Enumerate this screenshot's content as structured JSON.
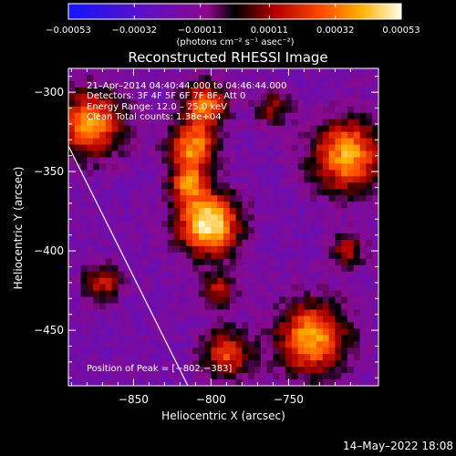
{
  "chart_data": {
    "type": "heatmap",
    "title": "Reconstructed RHESSI Image",
    "xlabel": "Heliocentric X (arcsec)",
    "ylabel": "Heliocentric Y (arcsec)",
    "xlim": [
      -892,
      -692
    ],
    "ylim": [
      -485,
      -285
    ],
    "x_ticks": [
      -850,
      -800,
      -750
    ],
    "x_tick_labels": [
      "−850",
      "−800",
      "−750"
    ],
    "y_ticks": [
      -300,
      -350,
      -400,
      -450
    ],
    "y_tick_labels": [
      "−300",
      "−350",
      "−400",
      "−450"
    ],
    "colorbar": {
      "min": -0.00053,
      "max": 0.00053,
      "ticks": [
        -0.00053,
        -0.00032,
        -0.00011,
        0.00011,
        0.00032,
        0.00053
      ],
      "tick_labels": [
        "−0.00053",
        "−0.00032",
        "−0.00011",
        "0.00011",
        "0.00032",
        "0.00053"
      ],
      "unit_label": "(photons cm⁻² s⁻¹ asec⁻²)"
    },
    "sources": [
      {
        "x": -802,
        "y": -383,
        "sigma": 14,
        "amp": 0.00053
      },
      {
        "x": -812,
        "y": -335,
        "sigma": 11,
        "amp": 0.00036
      },
      {
        "x": -804,
        "y": -308,
        "sigma": 10,
        "amp": 0.00032
      },
      {
        "x": -878,
        "y": -320,
        "sigma": 15,
        "amp": 0.00036
      },
      {
        "x": -712,
        "y": -340,
        "sigma": 16,
        "amp": 0.0004
      },
      {
        "x": -735,
        "y": -455,
        "sigma": 16,
        "amp": 0.0004
      },
      {
        "x": -790,
        "y": -465,
        "sigma": 11,
        "amp": 0.00024
      },
      {
        "x": -870,
        "y": -420,
        "sigma": 9,
        "amp": 0.00016
      },
      {
        "x": -712,
        "y": -400,
        "sigma": 8,
        "amp": 0.00012
      },
      {
        "x": -760,
        "y": -310,
        "sigma": 8,
        "amp": 0.0001
      },
      {
        "x": -815,
        "y": -358,
        "sigma": 8,
        "amp": 0.00024
      },
      {
        "x": -795,
        "y": -425,
        "sigma": 8,
        "amp": 0.00012
      }
    ],
    "annotations": [
      "21–Apr–2014 04:40:44.000 to 04:46:44.000",
      "Detectors: 3F 4F 5F 6F 7F 8F, Att 0",
      "Energy Range: 12.0 – 25.0 keV",
      "Clean    Total counts: 1.38e+04"
    ],
    "peak_label": "Position of Peak = [−802,−383]",
    "peak": {
      "x": -802,
      "y": -383
    }
  },
  "footer": {
    "date": "14–May–2022 18:08"
  }
}
